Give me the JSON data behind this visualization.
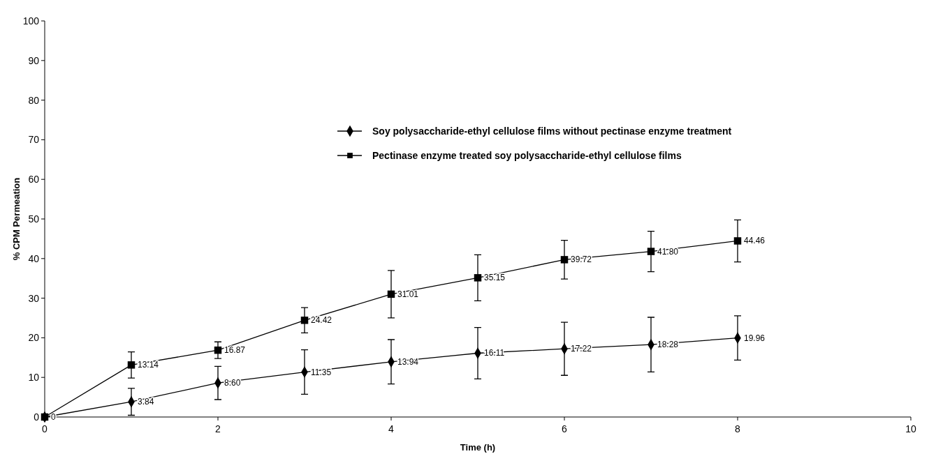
{
  "chart_data": {
    "type": "line",
    "xlabel": "Time (h)",
    "ylabel": "% CPM Permeation",
    "x": [
      0,
      1,
      2,
      3,
      4,
      5,
      6,
      7,
      8
    ],
    "xlim": [
      0,
      10
    ],
    "xticks": [
      0,
      2,
      4,
      6,
      8,
      10
    ],
    "ylim": [
      0,
      100
    ],
    "yticks": [
      0,
      10,
      20,
      30,
      40,
      50,
      60,
      70,
      80,
      90,
      100
    ],
    "grid": false,
    "legend": "top right",
    "line_style": "solid",
    "series": [
      {
        "name": "Soy polysaccharide-ethyl cellulose films without pectinase enzyme treatment",
        "color": "#000000",
        "marker": "diamond",
        "values": [
          0,
          3.84,
          8.6,
          11.35,
          13.94,
          16.11,
          17.22,
          18.28,
          19.96
        ],
        "errors": [
          null,
          3.4,
          4.2,
          5.6,
          5.6,
          6.5,
          6.7,
          6.9,
          5.6
        ],
        "value_labels": [
          "0",
          "3.84",
          "8.60",
          "11.35",
          "13.94",
          "16.11",
          "17.22",
          "18.28",
          "19.96"
        ]
      },
      {
        "name": "Pectinase enzyme treated soy polysaccharide-ethyl cellulose films",
        "color": "#000000",
        "marker": "square",
        "values": [
          0,
          13.14,
          16.87,
          24.42,
          31.01,
          35.15,
          39.72,
          41.8,
          44.46
        ],
        "errors": [
          null,
          3.3,
          2.1,
          3.2,
          6,
          5.8,
          4.9,
          5.1,
          5.3
        ],
        "value_labels": [
          null,
          "13.14",
          "16.87",
          "24.42",
          "31.01",
          "35.15",
          "39.72",
          "41.80",
          "44.46"
        ]
      }
    ]
  }
}
